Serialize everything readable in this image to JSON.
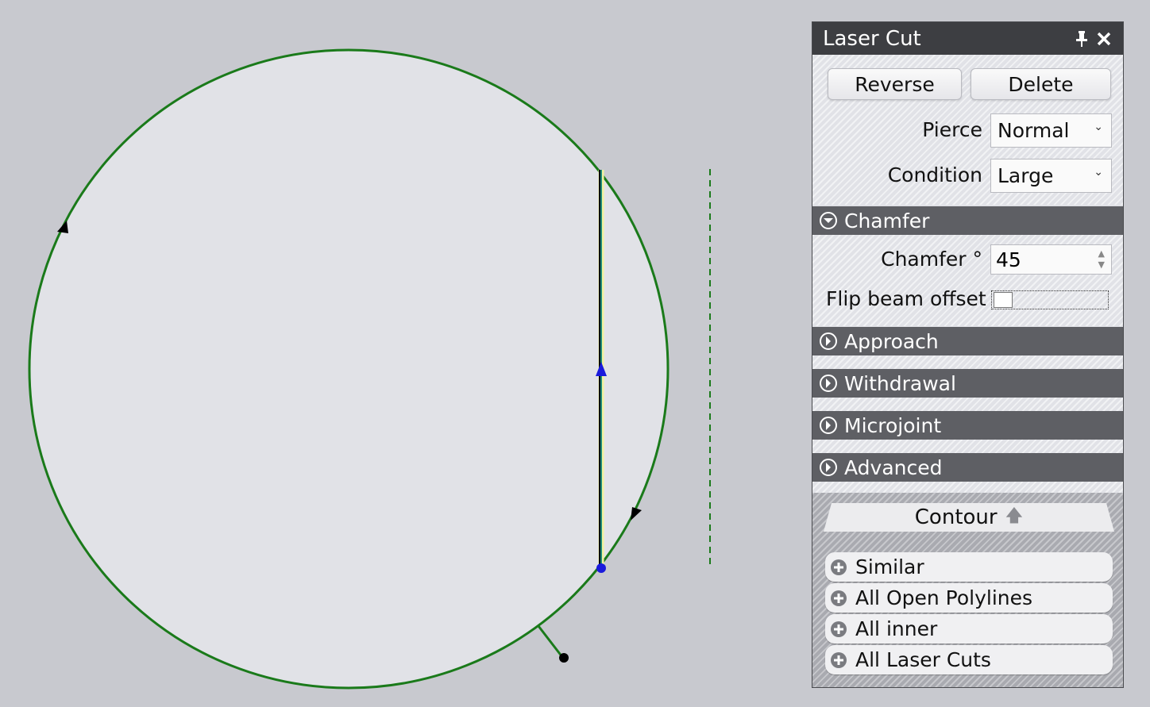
{
  "panel": {
    "title": "Laser Cut",
    "pin_icon": "pin-icon",
    "close_icon": "close-icon",
    "buttons": {
      "reverse": "Reverse",
      "delete": "Delete"
    },
    "pierce": {
      "label": "Pierce",
      "value": "Normal"
    },
    "condition": {
      "label": "Condition",
      "value": "Large"
    },
    "sections": {
      "chamfer": "Chamfer",
      "approach": "Approach",
      "withdrawal": "Withdrawal",
      "microjoint": "Microjoint",
      "advanced": "Advanced"
    },
    "chamfer_fields": {
      "angle_label": "Chamfer °",
      "angle_value": "45",
      "flip_label": "Flip beam offset",
      "flip_checked": false
    },
    "contour": {
      "tab_label": "Contour",
      "items": [
        "Similar",
        "All Open Polylines",
        "All inner",
        "All Laser Cuts"
      ]
    }
  },
  "colors": {
    "background": "#c8c9cf",
    "part_fill": "#e1e2e7",
    "contour": "#1a7a1a",
    "cut_line": "#1f8c7a",
    "marker_blue": "#1a1adc"
  }
}
